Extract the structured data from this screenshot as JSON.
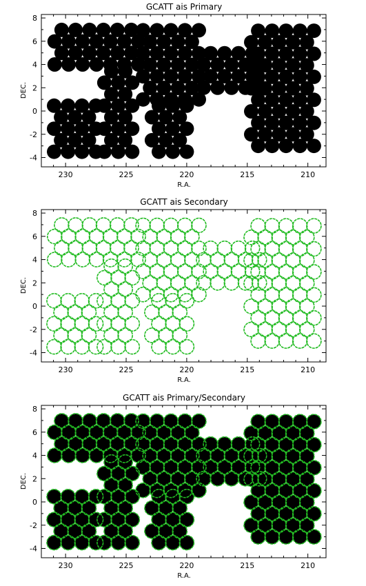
{
  "colors": {
    "primary_fill": "#000000",
    "secondary_outline": "#22bb22",
    "axes": "#000000",
    "background": "#ffffff"
  },
  "chart_data": [
    {
      "type": "scatter",
      "title": "GCATT ais Primary",
      "xlabel": "R.A.",
      "ylabel": "DEC.",
      "xlim": [
        232,
        208.5
      ],
      "ylim": [
        -4.8,
        8.3
      ],
      "xticks": [
        230,
        225,
        220,
        215,
        210
      ],
      "yticks": [
        -4,
        -2,
        0,
        2,
        4,
        6,
        8
      ],
      "grid": false,
      "legend": "none",
      "series": [
        {
          "marker": "filled-circle",
          "color": "#000000",
          "radius_deg": 0.6,
          "regions": [
            {
              "x": [
                224,
                231
              ],
              "y": [
                4.0,
                7.3
              ]
            },
            {
              "x": [
                219,
                224
              ],
              "y": [
                1.0,
                7.0
              ]
            },
            {
              "x": [
                224.5,
                227
              ],
              "y": [
                -3.5,
                4.0
              ]
            },
            {
              "x": [
                220,
                223
              ],
              "y": [
                -3.5,
                1.0
              ]
            },
            {
              "x": [
                214,
                219
              ],
              "y": [
                2.0,
                5.5
              ]
            },
            {
              "x": [
                209.5,
                215
              ],
              "y": [
                -3.0,
                7.3
              ]
            },
            {
              "x": [
                227.5,
                231.5
              ],
              "y": [
                -3.5,
                1.2
              ]
            }
          ]
        }
      ]
    },
    {
      "type": "scatter",
      "title": "GCATT ais Secondary",
      "xlabel": "R.A.",
      "ylabel": "DEC.",
      "xlim": [
        232,
        208.5
      ],
      "ylim": [
        -4.8,
        8.3
      ],
      "xticks": [
        230,
        225,
        220,
        215,
        210
      ],
      "yticks": [
        -4,
        -2,
        0,
        2,
        4,
        6,
        8
      ],
      "grid": false,
      "legend": "none",
      "series": [
        {
          "marker": "open-circle",
          "color": "#22bb22",
          "radius_deg": 0.6,
          "regions": [
            {
              "x": [
                224,
                231
              ],
              "y": [
                4.0,
                7.3
              ]
            },
            {
              "x": [
                219,
                224
              ],
              "y": [
                1.0,
                7.0
              ]
            },
            {
              "x": [
                224.5,
                227
              ],
              "y": [
                -3.5,
                4.0
              ]
            },
            {
              "x": [
                220,
                223
              ],
              "y": [
                -3.5,
                1.0
              ]
            },
            {
              "x": [
                214,
                219
              ],
              "y": [
                2.0,
                5.5
              ]
            },
            {
              "x": [
                209.5,
                215
              ],
              "y": [
                -3.0,
                7.3
              ]
            },
            {
              "x": [
                227.5,
                231.5
              ],
              "y": [
                -3.5,
                1.2
              ]
            }
          ]
        }
      ]
    },
    {
      "type": "scatter",
      "title": "GCATT ais Primary/Secondary",
      "xlabel": "R.A.",
      "ylabel": "DEC.",
      "xlim": [
        232,
        208.5
      ],
      "ylim": [
        -4.8,
        8.3
      ],
      "xticks": [
        230,
        225,
        220,
        215,
        210
      ],
      "yticks": [
        -4,
        -2,
        0,
        2,
        4,
        6,
        8
      ],
      "grid": false,
      "legend": "none",
      "series": [
        {
          "marker": "filled-circle",
          "color": "#000000",
          "radius_deg": 0.6,
          "regions": [
            {
              "x": [
                224,
                231
              ],
              "y": [
                4.0,
                7.3
              ]
            },
            {
              "x": [
                219,
                224
              ],
              "y": [
                1.0,
                7.0
              ]
            },
            {
              "x": [
                224.5,
                227
              ],
              "y": [
                -3.5,
                4.0
              ]
            },
            {
              "x": [
                220,
                223
              ],
              "y": [
                -3.5,
                1.0
              ]
            },
            {
              "x": [
                214,
                219
              ],
              "y": [
                2.0,
                5.5
              ]
            },
            {
              "x": [
                209.5,
                215
              ],
              "y": [
                -3.0,
                7.3
              ]
            },
            {
              "x": [
                227.5,
                231.5
              ],
              "y": [
                -3.5,
                1.2
              ]
            }
          ]
        },
        {
          "marker": "open-circle",
          "color": "#22bb22",
          "radius_deg": 0.6,
          "regions": [
            {
              "x": [
                224,
                231
              ],
              "y": [
                4.0,
                7.3
              ]
            },
            {
              "x": [
                219,
                224
              ],
              "y": [
                1.0,
                7.0
              ]
            },
            {
              "x": [
                224.5,
                227
              ],
              "y": [
                -3.5,
                4.0
              ]
            },
            {
              "x": [
                220,
                223
              ],
              "y": [
                -3.5,
                1.0
              ]
            },
            {
              "x": [
                214,
                219
              ],
              "y": [
                2.0,
                5.5
              ]
            },
            {
              "x": [
                209.5,
                215
              ],
              "y": [
                -3.0,
                7.3
              ]
            },
            {
              "x": [
                227.5,
                231.5
              ],
              "y": [
                -3.5,
                1.2
              ]
            }
          ]
        }
      ]
    }
  ]
}
